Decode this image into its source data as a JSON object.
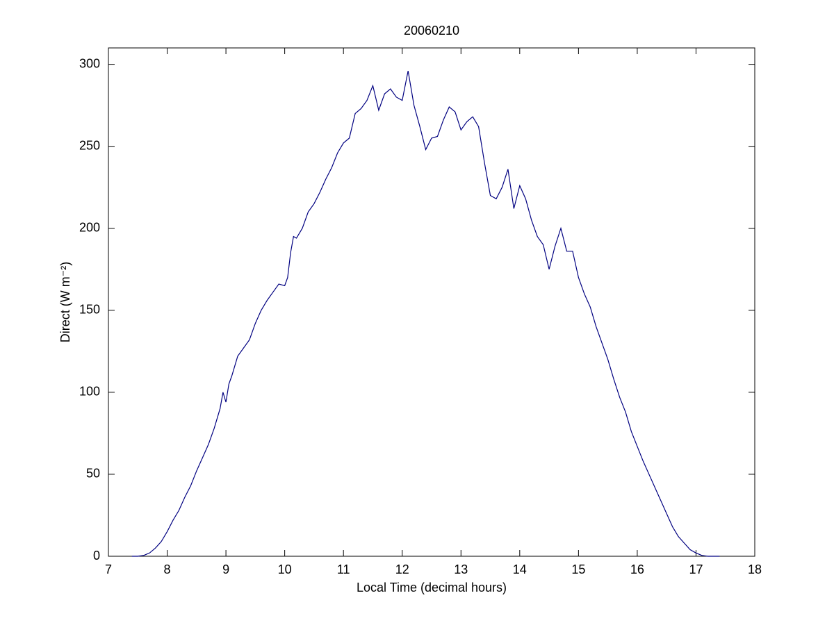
{
  "chart_data": {
    "type": "line",
    "title": "20060210",
    "xlabel": "Local Time (decimal hours)",
    "ylabel": "Direct (W m⁻²)",
    "x": [
      7.4,
      7.5,
      7.6,
      7.7,
      7.8,
      7.9,
      8.0,
      8.1,
      8.2,
      8.3,
      8.4,
      8.5,
      8.6,
      8.7,
      8.8,
      8.9,
      8.95,
      9.0,
      9.05,
      9.1,
      9.2,
      9.3,
      9.4,
      9.5,
      9.6,
      9.7,
      9.8,
      9.9,
      10.0,
      10.05,
      10.1,
      10.15,
      10.2,
      10.3,
      10.4,
      10.5,
      10.6,
      10.7,
      10.8,
      10.9,
      11.0,
      11.1,
      11.2,
      11.3,
      11.4,
      11.5,
      11.6,
      11.7,
      11.8,
      11.9,
      12.0,
      12.1,
      12.2,
      12.3,
      12.4,
      12.5,
      12.6,
      12.7,
      12.8,
      12.9,
      13.0,
      13.1,
      13.2,
      13.3,
      13.4,
      13.5,
      13.6,
      13.7,
      13.8,
      13.9,
      14.0,
      14.1,
      14.2,
      14.3,
      14.4,
      14.5,
      14.6,
      14.7,
      14.8,
      14.9,
      15.0,
      15.1,
      15.2,
      15.3,
      15.4,
      15.5,
      15.6,
      15.7,
      15.8,
      15.9,
      16.0,
      16.1,
      16.2,
      16.3,
      16.4,
      16.5,
      16.6,
      16.7,
      16.8,
      16.9,
      17.0,
      17.1,
      17.2,
      17.4
    ],
    "series": [
      {
        "name": "Direct",
        "color": "#000080",
        "values": [
          0,
          0,
          0.5,
          2,
          5,
          9,
          15,
          22,
          28,
          36,
          43,
          52,
          60,
          68,
          78,
          90,
          100,
          94,
          105,
          110,
          122,
          127,
          132,
          142,
          150,
          156,
          161,
          166,
          165,
          170,
          185,
          195,
          194,
          200,
          210,
          215,
          222,
          230,
          237,
          246,
          252,
          255,
          270,
          273,
          278,
          287,
          272,
          282,
          285,
          280,
          278,
          296,
          275,
          262,
          248,
          255,
          256,
          266,
          274,
          271,
          260,
          265,
          268,
          262,
          240,
          220,
          218,
          225,
          236,
          212,
          226,
          218,
          205,
          195,
          190,
          175,
          189,
          200,
          186,
          186,
          170,
          160,
          152,
          140,
          130,
          120,
          108,
          97,
          88,
          76,
          67,
          58,
          50,
          42,
          34,
          26,
          18,
          12,
          8,
          4,
          2,
          0.5,
          0,
          0
        ]
      }
    ],
    "xlim": [
      7,
      18
    ],
    "xticks": [
      7,
      8,
      9,
      10,
      11,
      12,
      13,
      14,
      15,
      16,
      17,
      18
    ],
    "ylim": [
      0,
      310
    ],
    "yticks": [
      0,
      50,
      100,
      150,
      200,
      250,
      300
    ]
  }
}
